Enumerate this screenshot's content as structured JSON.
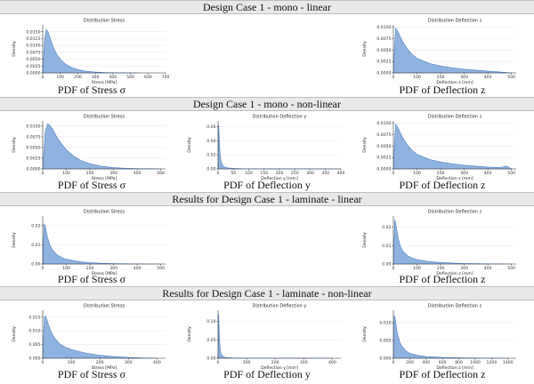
{
  "sections": [
    {
      "title": "Design Case 1 - mono - linear"
    },
    {
      "title": "Design Case 1 - mono - non-linear"
    },
    {
      "title": "Results for Design Case 1 - laminate - linear"
    },
    {
      "title": "Results for Design Case 1 - laminate - non-linear"
    }
  ],
  "captions": {
    "stress": "PDF of Stress σ",
    "deflection_y": "PDF of Deflection y",
    "deflection_z": "PDF of Deflection z"
  },
  "chart_data": [
    {
      "id": "s0c0",
      "type": "area",
      "title": "Distribution Stress",
      "xlabel": "Stress [MPa]",
      "ylabel": "Density",
      "xlim": [
        0,
        700
      ],
      "ylim": [
        0,
        0.0175
      ],
      "xticks": [
        0,
        100,
        200,
        300,
        400,
        500,
        600,
        700
      ],
      "yticks": [
        0.0,
        0.0025,
        0.005,
        0.0075,
        0.01,
        0.0125,
        0.015
      ],
      "ytick_labels": [
        "0.0000",
        "0.0025",
        "0.0050",
        "0.0075",
        "0.0100",
        "0.0125",
        "0.0150"
      ],
      "x": [
        0,
        5,
        10,
        20,
        30,
        40,
        50,
        60,
        80,
        100,
        130,
        160,
        200,
        250,
        300,
        350,
        400,
        450,
        500,
        550
      ],
      "y": [
        0,
        0.006,
        0.012,
        0.0158,
        0.015,
        0.0132,
        0.0112,
        0.0094,
        0.0068,
        0.005,
        0.0032,
        0.0021,
        0.0012,
        0.0006,
        0.0003,
        0.00015,
        8e-05,
        4e-05,
        2e-05,
        0
      ]
    },
    {
      "id": "s0c2",
      "type": "area",
      "title": "Distribution Deflection z",
      "xlabel": "Deflection z [mm]",
      "ylabel": "Density",
      "xlim": [
        0,
        520
      ],
      "ylim": [
        0,
        0.0105
      ],
      "xticks": [
        0,
        100,
        200,
        300,
        400,
        500
      ],
      "yticks": [
        0.0,
        0.0025,
        0.005,
        0.0075,
        0.01
      ],
      "ytick_labels": [
        "0.0000",
        "0.0025",
        "0.0050",
        "0.0075",
        "0.0100"
      ],
      "x": [
        0,
        5,
        10,
        20,
        30,
        40,
        60,
        80,
        100,
        150,
        200,
        250,
        300,
        350,
        400,
        450,
        500
      ],
      "y": [
        0,
        0.006,
        0.0098,
        0.009,
        0.0078,
        0.0068,
        0.0052,
        0.004,
        0.0032,
        0.0021,
        0.0015,
        0.0011,
        0.0008,
        0.0006,
        0.0004,
        0.0002,
        0
      ]
    },
    {
      "id": "s1c0",
      "type": "area",
      "title": "Distribution Stress",
      "xlabel": "Stress [MPa]",
      "ylabel": "Density",
      "xlim": [
        0,
        520
      ],
      "ylim": [
        0,
        0.0112
      ],
      "xticks": [
        0,
        100,
        200,
        300,
        400,
        500
      ],
      "yticks": [
        0.0,
        0.0025,
        0.005,
        0.0075,
        0.01
      ],
      "ytick_labels": [
        "0.0000",
        "0.0025",
        "0.0050",
        "0.0075",
        "0.0100"
      ],
      "x": [
        0,
        5,
        10,
        20,
        30,
        40,
        50,
        60,
        80,
        100,
        130,
        160,
        200,
        250,
        300,
        350,
        400,
        450,
        500
      ],
      "y": [
        0,
        0.004,
        0.0085,
        0.0105,
        0.0102,
        0.0094,
        0.0084,
        0.0074,
        0.0058,
        0.0045,
        0.003,
        0.002,
        0.0012,
        0.0006,
        0.0003,
        0.00015,
        7e-05,
        3e-05,
        0
      ]
    },
    {
      "id": "s1c1",
      "type": "area",
      "title": "Distribution Deflection y",
      "xlabel": "Deflection y [mm]",
      "ylabel": "Density",
      "xlim": [
        0,
        400
      ],
      "ylim": [
        0,
        0.068
      ],
      "xticks": [
        0,
        50,
        100,
        150,
        200,
        250,
        300,
        350,
        400
      ],
      "yticks": [
        0.0,
        0.02,
        0.04,
        0.06
      ],
      "ytick_labels": [
        "0.00",
        "0.02",
        "0.04",
        "0.06"
      ],
      "x": [
        0,
        1,
        2,
        3,
        4,
        6,
        8,
        10,
        15,
        20,
        30,
        50,
        80,
        120,
        200,
        300,
        400
      ],
      "y": [
        0,
        0.03,
        0.062,
        0.055,
        0.042,
        0.026,
        0.016,
        0.01,
        0.005,
        0.003,
        0.0015,
        0.0007,
        0.0003,
        0.00015,
        5e-05,
        2e-05,
        0
      ]
    },
    {
      "id": "s1c2",
      "type": "area",
      "title": "Distribution Deflection z",
      "xlabel": "Deflection z [mm]",
      "ylabel": "Density",
      "xlim": [
        0,
        520
      ],
      "ylim": [
        0,
        0.0105
      ],
      "xticks": [
        0,
        100,
        200,
        300,
        400,
        500
      ],
      "yticks": [
        0.0,
        0.0025,
        0.005,
        0.0075,
        0.01
      ],
      "ytick_labels": [
        "0.0000",
        "0.0025",
        "0.0050",
        "0.0075",
        "0.0100"
      ],
      "x": [
        0,
        5,
        10,
        20,
        30,
        40,
        60,
        80,
        100,
        150,
        200,
        250,
        300,
        350,
        400,
        450,
        480,
        500
      ],
      "y": [
        0,
        0.006,
        0.0098,
        0.009,
        0.0078,
        0.0068,
        0.0052,
        0.004,
        0.0032,
        0.0021,
        0.0015,
        0.0011,
        0.0008,
        0.0006,
        0.0004,
        0.0003,
        0.0006,
        0
      ]
    },
    {
      "id": "s2c0",
      "type": "area",
      "title": "Distribution Stress",
      "xlabel": "Stress [MPa]",
      "ylabel": "Density",
      "xlim": [
        0,
        520
      ],
      "ylim": [
        0,
        0.025
      ],
      "xticks": [
        0,
        100,
        200,
        300,
        400,
        500
      ],
      "yticks": [
        0.0,
        0.01,
        0.02
      ],
      "ytick_labels": [
        "0.00",
        "0.01",
        "0.02"
      ],
      "x": [
        0,
        3,
        6,
        10,
        15,
        20,
        30,
        40,
        60,
        80,
        100,
        150,
        200,
        250,
        300,
        400,
        500
      ],
      "y": [
        0,
        0.012,
        0.021,
        0.02,
        0.017,
        0.014,
        0.01,
        0.0075,
        0.0048,
        0.0034,
        0.0025,
        0.0013,
        0.0007,
        0.0004,
        0.0002,
        6e-05,
        0
      ]
    },
    {
      "id": "s2c2",
      "type": "area",
      "title": "Distribution Deflection z",
      "xlabel": "Deflection z [mm]",
      "ylabel": "Density",
      "xlim": [
        0,
        520
      ],
      "ylim": [
        0,
        0.026
      ],
      "xticks": [
        0,
        100,
        200,
        300,
        400,
        500
      ],
      "yticks": [
        0.0,
        0.01,
        0.02
      ],
      "ytick_labels": [
        "0.00",
        "0.01",
        "0.02"
      ],
      "x": [
        0,
        3,
        6,
        10,
        15,
        20,
        30,
        40,
        60,
        80,
        100,
        150,
        200,
        250,
        300,
        400,
        500
      ],
      "y": [
        0,
        0.012,
        0.024,
        0.022,
        0.018,
        0.014,
        0.0095,
        0.007,
        0.0045,
        0.0032,
        0.0024,
        0.0013,
        0.0008,
        0.0005,
        0.0003,
        0.0001,
        0
      ]
    },
    {
      "id": "s3c0",
      "type": "area",
      "title": "Distribution Stress",
      "xlabel": "Stress [MPa]",
      "ylabel": "Density",
      "xlim": [
        0,
        430
      ],
      "ylim": [
        0,
        0.0175
      ],
      "xticks": [
        0,
        100,
        200,
        300,
        400
      ],
      "yticks": [
        0.0,
        0.005,
        0.01,
        0.015
      ],
      "ytick_labels": [
        "0.000",
        "0.005",
        "0.010",
        "0.015"
      ],
      "x": [
        0,
        3,
        6,
        10,
        15,
        20,
        30,
        40,
        60,
        80,
        100,
        150,
        200,
        250,
        300,
        350,
        400
      ],
      "y": [
        0,
        0.008,
        0.015,
        0.0155,
        0.014,
        0.0122,
        0.0095,
        0.0075,
        0.0052,
        0.004,
        0.0032,
        0.0019,
        0.0011,
        0.0006,
        0.0003,
        0.00012,
        0
      ]
    },
    {
      "id": "s3c1",
      "type": "area",
      "title": "Distribution Deflection y",
      "xlabel": "Deflection y [mm]",
      "ylabel": "Density",
      "xlim": [
        0,
        430
      ],
      "ylim": [
        0,
        0.13
      ],
      "xticks": [
        0,
        100,
        200,
        300,
        400
      ],
      "yticks": [
        0.0,
        0.05,
        0.1
      ],
      "ytick_labels": [
        "0.00",
        "0.05",
        "0.10"
      ],
      "x": [
        0,
        1,
        2,
        3,
        4,
        6,
        8,
        10,
        15,
        20,
        30,
        50,
        100,
        200,
        300,
        400
      ],
      "y": [
        0,
        0.05,
        0.12,
        0.1,
        0.07,
        0.04,
        0.022,
        0.013,
        0.006,
        0.0035,
        0.0018,
        0.0008,
        0.0003,
        0.0001,
        4e-05,
        0
      ]
    },
    {
      "id": "s3c2",
      "type": "area",
      "title": "Distribution Deflection z",
      "xlabel": "Deflection z [mm]",
      "ylabel": "Density",
      "xlim": [
        0,
        1500
      ],
      "ylim": [
        0,
        0.0135
      ],
      "xticks": [
        0,
        200,
        400,
        600,
        800,
        1000,
        1200,
        1400
      ],
      "yticks": [
        0.0,
        0.005,
        0.01
      ],
      "ytick_labels": [
        "0.000",
        "0.005",
        "0.010"
      ],
      "x": [
        0,
        5,
        10,
        20,
        30,
        40,
        60,
        80,
        100,
        150,
        200,
        300,
        400,
        600,
        800,
        1000,
        1200,
        1400
      ],
      "y": [
        0,
        0.006,
        0.012,
        0.0115,
        0.0098,
        0.0082,
        0.006,
        0.0045,
        0.0035,
        0.0021,
        0.0014,
        0.0008,
        0.0005,
        0.00025,
        0.00012,
        6e-05,
        3e-05,
        0
      ]
    }
  ]
}
